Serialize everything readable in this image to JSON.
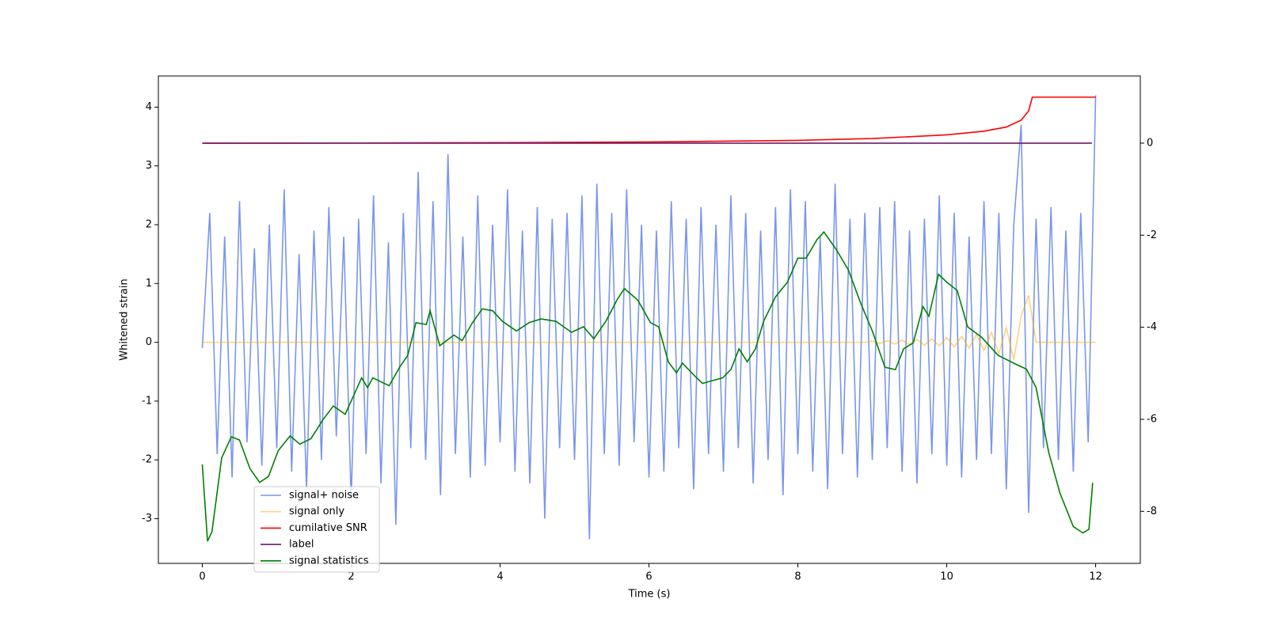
{
  "chart_data": {
    "type": "line",
    "xlabel": "Time (s)",
    "ylabel": "Whitened strain",
    "xlim": [
      -0.59,
      12.6
    ],
    "ylim": [
      -3.76,
      4.53
    ],
    "y2lim": [
      -9.13,
      1.46
    ],
    "xticks": [
      0,
      2,
      4,
      6,
      8,
      10,
      12
    ],
    "yticks": [
      -3,
      -2,
      -1,
      0,
      1,
      2,
      3,
      4
    ],
    "y2ticks": [
      -8,
      -6,
      -4,
      -2,
      0
    ],
    "x": [
      0,
      0.1,
      0.2,
      0.3,
      0.4,
      0.5,
      0.6,
      0.7,
      0.8,
      0.9,
      1,
      1.1,
      1.2,
      1.3,
      1.4,
      1.5,
      1.6,
      1.7,
      1.8,
      1.9,
      2,
      2.1,
      2.2,
      2.3,
      2.4,
      2.5,
      2.6,
      2.7,
      2.8,
      2.9,
      3,
      3.1,
      3.2,
      3.3,
      3.4,
      3.5,
      3.6,
      3.7,
      3.8,
      3.9,
      4,
      4.1,
      4.2,
      4.3,
      4.4,
      4.5,
      4.6,
      4.7,
      4.8,
      4.9,
      5,
      5.1,
      5.2,
      5.3,
      5.4,
      5.5,
      5.6,
      5.7,
      5.8,
      5.9,
      6,
      6.1,
      6.2,
      6.3,
      6.4,
      6.5,
      6.6,
      6.7,
      6.8,
      6.9,
      7,
      7.1,
      7.2,
      7.3,
      7.4,
      7.5,
      7.6,
      7.7,
      7.8,
      7.9,
      8,
      8.1,
      8.2,
      8.3,
      8.4,
      8.5,
      8.6,
      8.7,
      8.8,
      8.9,
      9,
      9.1,
      9.2,
      9.3,
      9.4,
      9.5,
      9.6,
      9.7,
      9.8,
      9.9,
      10,
      10.1,
      10.2,
      10.3,
      10.4,
      10.5,
      10.6,
      10.7,
      10.8,
      10.9,
      11,
      11.1,
      11.2,
      11.3,
      11.4,
      11.5,
      11.6,
      11.7,
      11.8,
      11.9,
      12
    ],
    "series": [
      {
        "name": "signal+ noise",
        "color": "#4169e1",
        "opacity": 0.7,
        "values": [
          -0.1,
          2.2,
          -1.9,
          1.8,
          -2.3,
          2.4,
          -1.7,
          1.6,
          -2.1,
          2.0,
          -1.8,
          2.6,
          -2.2,
          1.5,
          -2.5,
          1.9,
          -2.0,
          2.3,
          -1.6,
          1.8,
          -2.7,
          2.1,
          -1.9,
          2.5,
          -2.4,
          1.7,
          -3.1,
          2.2,
          -1.8,
          2.9,
          -2.0,
          2.4,
          -2.6,
          3.2,
          -1.9,
          1.8,
          -2.3,
          2.5,
          -2.1,
          2.0,
          -1.7,
          2.6,
          -2.2,
          1.9,
          -2.4,
          2.3,
          -3.0,
          2.1,
          -1.8,
          2.2,
          -2.0,
          2.5,
          -3.35,
          2.7,
          -1.9,
          2.2,
          -2.1,
          2.6,
          -1.7,
          2.0,
          -2.3,
          1.9,
          -2.2,
          2.4,
          -1.8,
          2.1,
          -2.5,
          2.3,
          -1.9,
          2.0,
          -2.2,
          2.5,
          -1.8,
          2.2,
          -2.4,
          1.9,
          -2.0,
          2.3,
          -2.6,
          2.6,
          -1.9,
          2.4,
          -2.2,
          1.8,
          -2.5,
          2.7,
          -1.9,
          2.1,
          -2.3,
          2.2,
          -2.0,
          2.3,
          -1.8,
          2.4,
          -2.2,
          1.9,
          -2.4,
          2.1,
          -1.9,
          2.5,
          -2.1,
          2.2,
          -2.3,
          1.8,
          -2.0,
          2.4,
          -1.9,
          2.2,
          -2.5,
          2.0,
          3.7,
          -2.9,
          2.1,
          -1.8,
          2.3,
          -2.0,
          1.9,
          -2.2,
          2.2,
          -1.7,
          4.2
        ]
      },
      {
        "name": "signal only",
        "color": "#ffa500",
        "opacity": 0.5,
        "values": [
          0,
          0,
          0,
          0,
          0,
          0,
          0,
          0,
          0,
          0,
          0,
          0,
          0,
          0,
          0,
          0,
          0,
          0,
          0,
          0,
          0,
          0,
          0,
          0,
          0,
          0,
          0,
          0,
          0,
          0,
          0,
          0,
          0,
          0,
          0,
          0,
          0,
          0,
          0,
          0,
          0,
          0,
          0,
          0,
          0,
          0,
          0,
          0,
          0,
          0,
          0,
          0,
          0,
          0,
          0,
          0,
          0,
          0,
          0,
          0,
          0,
          0,
          0,
          0,
          0,
          0,
          0,
          0,
          0,
          0,
          0,
          0,
          0,
          0,
          0,
          0,
          0,
          0,
          0,
          0,
          0,
          0,
          0,
          0,
          0,
          0,
          0,
          0,
          0,
          0,
          0.02,
          -0.02,
          0.03,
          -0.03,
          0.04,
          -0.04,
          0.05,
          -0.05,
          0.06,
          -0.06,
          0.08,
          -0.08,
          0.1,
          -0.1,
          0.13,
          -0.14,
          0.17,
          -0.19,
          0.25,
          -0.3,
          0.45,
          0.8,
          0,
          0,
          0,
          0,
          0,
          0,
          0,
          0,
          0
        ]
      },
      {
        "name": "cumilative SNR",
        "color": "#ff0000",
        "axis": "y2",
        "x": [
          0,
          2,
          4,
          6,
          8,
          9,
          10,
          10.5,
          10.8,
          11,
          11.1,
          11.15,
          11.2,
          12
        ],
        "values": [
          0,
          0.003,
          0.01,
          0.025,
          0.06,
          0.1,
          0.18,
          0.26,
          0.35,
          0.5,
          0.7,
          1.0,
          1.0,
          1.0
        ]
      },
      {
        "name": "label",
        "color": "#6a1a6a",
        "axis": "y2",
        "x": [
          0,
          11.95
        ],
        "values": [
          0,
          0
        ]
      },
      {
        "name": "signal statistics",
        "color": "#008000",
        "axis": "y2",
        "x": [
          0,
          0.07,
          0.13,
          0.26,
          0.39,
          0.5,
          0.64,
          0.77,
          0.89,
          1.02,
          1.18,
          1.31,
          1.46,
          1.62,
          1.76,
          1.92,
          2.14,
          2.22,
          2.29,
          2.51,
          2.65,
          2.76,
          2.87,
          3.01,
          3.06,
          3.19,
          3.38,
          3.49,
          3.63,
          3.76,
          3.9,
          4.03,
          4.22,
          4.39,
          4.55,
          4.75,
          4.96,
          5.12,
          5.26,
          5.42,
          5.58,
          5.67,
          5.85,
          6.02,
          6.13,
          6.26,
          6.37,
          6.45,
          6.61,
          6.72,
          6.83,
          6.99,
          7.1,
          7.21,
          7.32,
          7.43,
          7.54,
          7.7,
          7.86,
          8.0,
          8.11,
          8.26,
          8.35,
          8.52,
          8.68,
          8.84,
          9.0,
          9.17,
          9.31,
          9.42,
          9.55,
          9.68,
          9.76,
          9.89,
          10.0,
          10.14,
          10.28,
          10.47,
          10.69,
          10.9,
          11.07,
          11.2,
          11.37,
          11.52,
          11.7,
          11.83,
          11.91,
          11.96
        ],
        "values": [
          -6.98,
          -8.65,
          -8.44,
          -6.84,
          -6.38,
          -6.45,
          -7.07,
          -7.37,
          -7.24,
          -6.68,
          -6.36,
          -6.54,
          -6.42,
          -6.01,
          -5.71,
          -5.89,
          -5.1,
          -5.31,
          -5.1,
          -5.27,
          -4.87,
          -4.61,
          -3.9,
          -3.94,
          -3.64,
          -4.4,
          -4.17,
          -4.29,
          -3.9,
          -3.6,
          -3.64,
          -3.87,
          -4.08,
          -3.9,
          -3.82,
          -3.87,
          -4.11,
          -3.99,
          -4.25,
          -3.87,
          -3.38,
          -3.16,
          -3.41,
          -3.9,
          -3.99,
          -4.75,
          -4.99,
          -4.78,
          -5.05,
          -5.22,
          -5.17,
          -5.1,
          -4.92,
          -4.47,
          -4.75,
          -4.47,
          -3.87,
          -3.34,
          -3.02,
          -2.5,
          -2.5,
          -2.09,
          -1.93,
          -2.32,
          -2.76,
          -3.46,
          -4.08,
          -4.87,
          -4.92,
          -4.47,
          -4.34,
          -3.55,
          -3.76,
          -2.85,
          -3.02,
          -3.2,
          -3.99,
          -4.22,
          -4.61,
          -4.78,
          -4.91,
          -5.31,
          -6.72,
          -7.6,
          -8.33,
          -8.47,
          -8.39,
          -7.38
        ]
      }
    ]
  }
}
